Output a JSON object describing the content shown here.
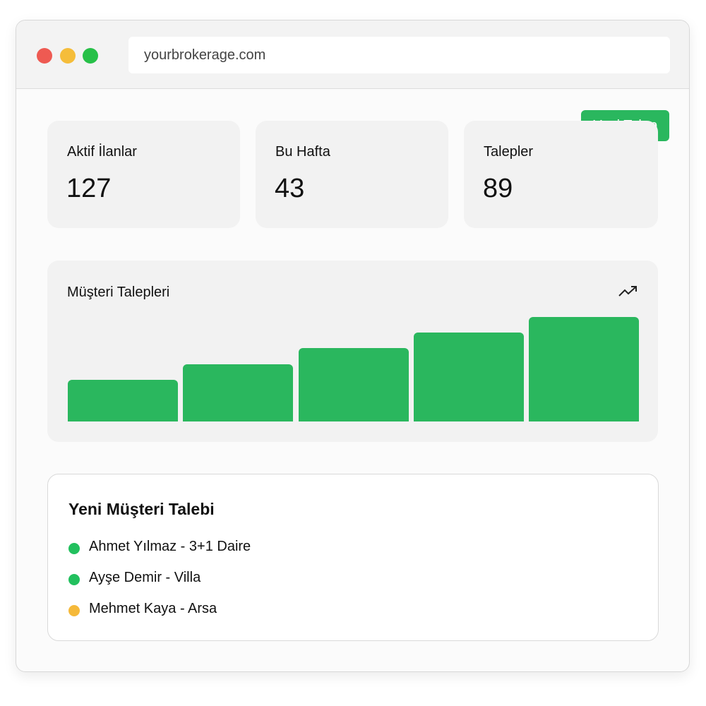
{
  "browser": {
    "url": "yourbrokerage.com"
  },
  "button": {
    "label": "Yeni Talep"
  },
  "stats": [
    {
      "label": "Aktif İlanlar",
      "value": 127
    },
    {
      "label": "Bu Hafta",
      "value": 43
    },
    {
      "label": "Talepler",
      "value": 89
    }
  ],
  "chart": {
    "type": "bar",
    "title": "Müşteri Talepleri",
    "values": [
      40,
      55,
      70,
      85,
      100
    ],
    "color": "#2ab75e",
    "ylim": [
      0,
      100
    ]
  },
  "requests": {
    "title": "Yeni Müşteri Talebi",
    "items": [
      {
        "text": "Ahmet Yılmaz - 3+1 Daire",
        "color": "#22c05e"
      },
      {
        "text": "Ayşe Demir - Villa",
        "color": "#22c05e"
      },
      {
        "text": "Mehmet Kaya - Arsa",
        "color": "#f5b93a"
      }
    ]
  }
}
